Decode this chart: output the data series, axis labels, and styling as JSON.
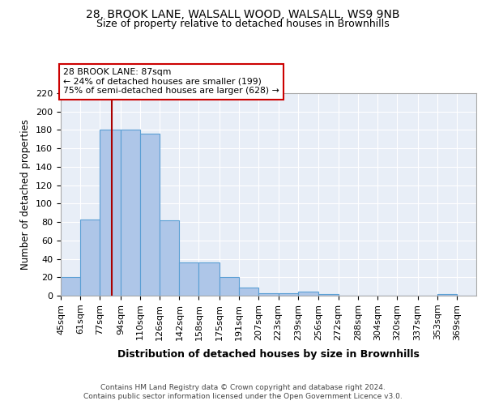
{
  "title1": "28, BROOK LANE, WALSALL WOOD, WALSALL, WS9 9NB",
  "title2": "Size of property relative to detached houses in Brownhills",
  "xlabel": "Distribution of detached houses by size in Brownhills",
  "ylabel": "Number of detached properties",
  "categories": [
    "45sqm",
    "61sqm",
    "77sqm",
    "94sqm",
    "110sqm",
    "126sqm",
    "142sqm",
    "158sqm",
    "175sqm",
    "191sqm",
    "207sqm",
    "223sqm",
    "239sqm",
    "256sqm",
    "272sqm",
    "288sqm",
    "304sqm",
    "320sqm",
    "337sqm",
    "353sqm",
    "369sqm"
  ],
  "values": [
    20,
    83,
    180,
    180,
    176,
    82,
    36,
    36,
    20,
    9,
    3,
    3,
    4,
    2,
    0,
    0,
    0,
    0,
    0,
    2,
    0
  ],
  "bar_color": "#aec6e8",
  "bar_edge_color": "#5a9fd4",
  "bg_color": "#e8eef7",
  "grid_color": "#ffffff",
  "red_line_x": 87,
  "annotation_text": "28 BROOK LANE: 87sqm\n← 24% of detached houses are smaller (199)\n75% of semi-detached houses are larger (628) →",
  "annotation_box_color": "#ffffff",
  "annotation_box_edge": "#cc0000",
  "annotation_text_color": "#000000",
  "ylim": [
    0,
    220
  ],
  "bin_edges": [
    45,
    61,
    77,
    94,
    110,
    126,
    142,
    158,
    175,
    191,
    207,
    223,
    239,
    256,
    272,
    288,
    304,
    320,
    337,
    353,
    369,
    385
  ],
  "footer1": "Contains HM Land Registry data © Crown copyright and database right 2024.",
  "footer2": "Contains public sector information licensed under the Open Government Licence v3.0.",
  "title1_fontsize": 10,
  "title2_fontsize": 9
}
